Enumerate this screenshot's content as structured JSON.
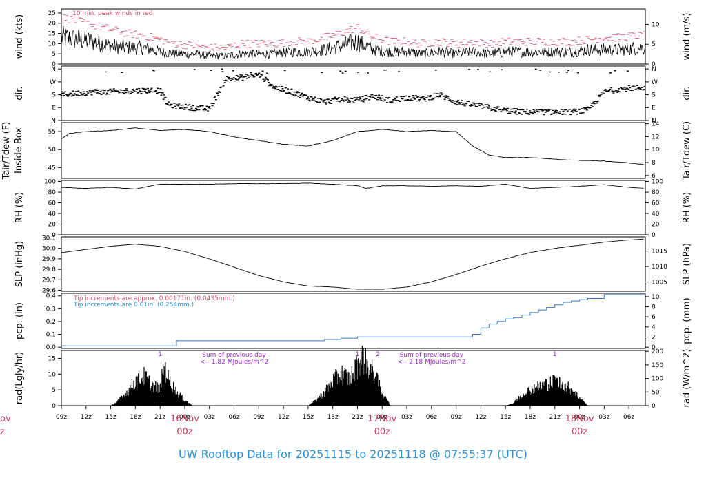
{
  "chart_data": {
    "type": "line",
    "title": "UW Rooftop Data for 20251115  to  20251118 @ 07:55:37  (UTC)",
    "hours_total": 71,
    "x_ticks": [
      {
        "h": 0,
        "label": "09z"
      },
      {
        "h": 3,
        "label": "12z"
      },
      {
        "h": 6,
        "label": "15z"
      },
      {
        "h": 9,
        "label": "18z"
      },
      {
        "h": 12,
        "label": "21z"
      },
      {
        "h": 15,
        "label": "00z"
      },
      {
        "h": 18,
        "label": "03z"
      },
      {
        "h": 21,
        "label": "06z"
      },
      {
        "h": 24,
        "label": "09z"
      },
      {
        "h": 27,
        "label": "12z"
      },
      {
        "h": 30,
        "label": "15z"
      },
      {
        "h": 33,
        "label": "18z"
      },
      {
        "h": 36,
        "label": "21z"
      },
      {
        "h": 39,
        "label": "00z"
      },
      {
        "h": 42,
        "label": "03z"
      },
      {
        "h": 45,
        "label": "06z"
      },
      {
        "h": 48,
        "label": "09z"
      },
      {
        "h": 51,
        "label": "12z"
      },
      {
        "h": 54,
        "label": "15z"
      },
      {
        "h": 57,
        "label": "18z"
      },
      {
        "h": 60,
        "label": "21z"
      },
      {
        "h": 63,
        "label": "00z"
      },
      {
        "h": 66,
        "label": "03z"
      },
      {
        "h": 69,
        "label": "06z"
      }
    ],
    "day_markers": [
      {
        "h": 15,
        "day": "16Nov",
        "time": "00z"
      },
      {
        "h": 39,
        "day": "17Nov",
        "time": "00z"
      },
      {
        "h": 63,
        "day": "18Nov",
        "time": "00z"
      }
    ],
    "edge_day_fragment": {
      "day": "ov",
      "time": "z"
    },
    "panels": [
      {
        "id": "wind",
        "ylabel_left": [
          "wind (kts)"
        ],
        "ylabel_right": "wind (m/s)",
        "yticks_left": [
          "0",
          "5",
          "10",
          "15",
          "20",
          "25"
        ],
        "yticks_left_values": [
          0,
          5,
          10,
          15,
          20,
          25
        ],
        "ylim_left": [
          0,
          27
        ],
        "yticks_right": [
          "0",
          "5",
          "10"
        ],
        "yticks_right_values": [
          0,
          5,
          10
        ],
        "ylim_right": [
          0,
          13.9
        ],
        "note": "10 min. peak winds in red",
        "series": [
          {
            "name": "wind",
            "h": [
              0,
              2,
              4,
              6,
              8,
              10,
              12,
              14,
              16,
              18,
              20,
              22,
              24,
              26,
              28,
              30,
              32,
              34,
              36,
              38,
              40,
              42,
              44,
              46,
              48,
              50,
              52,
              54,
              56,
              58,
              60,
              62,
              64,
              66,
              68,
              70,
              71
            ],
            "values": [
              13,
              12,
              11,
              9,
              8,
              8,
              6,
              5,
              5,
              4,
              4,
              5,
              5,
              5,
              6,
              6,
              7,
              9,
              11,
              7,
              6,
              6,
              5,
              6,
              5,
              6,
              5,
              6,
              6,
              6,
              6,
              6,
              7,
              7,
              7,
              8,
              8
            ]
          },
          {
            "name": "peak",
            "h": [
              0,
              2,
              4,
              6,
              8,
              10,
              12,
              14,
              16,
              18,
              20,
              22,
              24,
              26,
              28,
              30,
              32,
              34,
              36,
              38,
              40,
              42,
              44,
              46,
              48,
              50,
              52,
              54,
              56,
              58,
              60,
              62,
              64,
              66,
              68,
              70,
              71
            ],
            "values": [
              23,
              21,
              19,
              17,
              15,
              14,
              12,
              10,
              9,
              8,
              8,
              10,
              10,
              10,
              11,
              11,
              13,
              15,
              18,
              13,
              11,
              11,
              10,
              11,
              10,
              11,
              10,
              11,
              11,
              11,
              11,
              11,
              12,
              13,
              13,
              14,
              14
            ]
          }
        ]
      },
      {
        "id": "dir",
        "ylabel_left": [
          "dir."
        ],
        "ylabel_right": "dir.",
        "yticks_left": [
          "N",
          "E",
          "S",
          "W",
          "N"
        ],
        "yticks_left_values": [
          0,
          90,
          180,
          270,
          360
        ],
        "ylim_left": [
          0,
          380
        ],
        "yticks_right": [
          "N",
          "E",
          "S",
          "W",
          "N"
        ],
        "yticks_right_values": [
          0,
          90,
          180,
          270,
          360
        ],
        "ylim_right": [
          0,
          380
        ],
        "series": [
          {
            "name": "direction",
            "h": [
              0,
              2,
              4,
              6,
              8,
              10,
              12,
              13,
              14,
              16,
              18,
              20,
              22,
              24,
              26,
              28,
              30,
              32,
              34,
              36,
              38,
              40,
              42,
              44,
              46,
              48,
              50,
              52,
              54,
              56,
              58,
              60,
              62,
              64,
              66,
              68,
              70,
              71
            ],
            "values": [
              180,
              190,
              200,
              200,
              205,
              210,
              210,
              110,
              100,
              90,
              80,
              290,
              300,
              320,
              230,
              200,
              160,
              130,
              150,
              140,
              170,
              140,
              160,
              150,
              180,
              130,
              110,
              90,
              70,
              60,
              60,
              60,
              60,
              70,
              200,
              220,
              230,
              230
            ]
          }
        ]
      },
      {
        "id": "temp",
        "ylabel_left": [
          "Tair/Tdew (F)",
          "Inside Box"
        ],
        "ylabel_right": "Tair/Tdew (C)",
        "yticks_left": [
          "45",
          "50",
          "55"
        ],
        "yticks_left_values": [
          45,
          50,
          55
        ],
        "ylim_left": [
          42,
          57.5
        ],
        "yticks_right": [
          "6",
          "8",
          "10",
          "12",
          "14"
        ],
        "yticks_right_values": [
          6,
          8,
          10,
          12,
          14
        ],
        "ylim_right": [
          5.56,
          14.17
        ],
        "series": [
          {
            "name": "temp",
            "h": [
              0,
              1,
              3,
              6,
              9,
              12,
              15,
              18,
              21,
              24,
              27,
              30,
              33,
              36,
              39,
              42,
              45,
              48,
              50,
              52,
              54,
              57,
              60,
              63,
              66,
              69,
              71
            ],
            "values": [
              53,
              54.5,
              55,
              55.3,
              56,
              55.3,
              55.6,
              55,
              53.5,
              52.5,
              51.5,
              51,
              52.5,
              55,
              55.6,
              55,
              55.3,
              55,
              51,
              48.5,
              47.8,
              47.8,
              47.3,
              47,
              46.8,
              46.3,
              45.8
            ]
          }
        ]
      },
      {
        "id": "rh",
        "ylabel_left": [
          "RH (%)"
        ],
        "ylabel_right": "RH (%)",
        "yticks_left": [
          "0",
          "20",
          "40",
          "60",
          "80",
          "100"
        ],
        "yticks_left_values": [
          0,
          20,
          40,
          60,
          80,
          100
        ],
        "ylim_left": [
          0,
          102
        ],
        "yticks_right": [
          "0",
          "20",
          "40",
          "60",
          "80",
          "100"
        ],
        "yticks_right_values": [
          0,
          20,
          40,
          60,
          80,
          100
        ],
        "ylim_right": [
          0,
          102
        ],
        "series": [
          {
            "name": "rh",
            "h": [
              0,
              3,
              6,
              9,
              12,
              15,
              18,
              21,
              24,
              27,
              30,
              33,
              36,
              37,
              39,
              42,
              45,
              48,
              51,
              54,
              57,
              60,
              63,
              66,
              69,
              71
            ],
            "values": [
              89,
              87,
              89,
              86,
              95,
              95,
              95,
              96,
              96,
              96,
              97,
              95,
              92,
              87,
              92,
              92,
              91,
              92,
              91,
              95,
              87,
              89,
              91,
              94,
              89,
              87
            ]
          }
        ]
      },
      {
        "id": "slp",
        "ylabel_left": [
          "SLP (inHg)"
        ],
        "ylabel_right": "SLP (hPa)",
        "yticks_left": [
          "29.6",
          "29.7",
          "29.8",
          "29.9",
          "30.0",
          "30.1"
        ],
        "yticks_left_values": [
          29.6,
          29.7,
          29.8,
          29.9,
          30.0,
          30.1
        ],
        "ylim_left": [
          29.59,
          30.11
        ],
        "yticks_right": [
          "1005",
          "1010",
          "1015"
        ],
        "yticks_right_values": [
          1005,
          1010,
          1015
        ],
        "ylim_right": [
          1002.0,
          1019.6
        ],
        "series": [
          {
            "name": "slp",
            "h": [
              0,
              3,
              6,
              9,
              12,
              15,
              18,
              21,
              24,
              27,
              30,
              33,
              36,
              39,
              42,
              45,
              48,
              51,
              54,
              57,
              60,
              63,
              66,
              69,
              71
            ],
            "values": [
              29.96,
              29.99,
              30.02,
              30.04,
              30.02,
              29.97,
              29.9,
              29.82,
              29.74,
              29.68,
              29.64,
              29.63,
              29.61,
              29.61,
              29.63,
              29.68,
              29.75,
              29.83,
              29.9,
              29.96,
              30.0,
              30.03,
              30.06,
              30.08,
              30.09
            ]
          }
        ]
      },
      {
        "id": "pcp",
        "ylabel_left": [
          "pcp. (in)"
        ],
        "ylabel_right": "pcp. (mm)",
        "yticks_left": [
          "0.0",
          "0.1",
          "0.2",
          "0.3",
          "0.4"
        ],
        "yticks_left_values": [
          0,
          0.1,
          0.2,
          0.3,
          0.4
        ],
        "ylim_left": [
          -0.01,
          0.42
        ],
        "yticks_right": [
          "0",
          "2",
          "4",
          "6",
          "8",
          "10"
        ],
        "yticks_right_values": [
          0,
          2,
          4,
          6,
          8,
          10
        ],
        "ylim_right": [
          -0.254,
          10.67
        ],
        "notes": [
          {
            "text": "Tip increments are approx. 0.00171in. (0.0435mm.)",
            "color": "#d4506e"
          },
          {
            "text": "Tip increments are 0.01in. (0.254mm.)",
            "color": "#2a8fd0"
          }
        ],
        "series": [
          {
            "name": "pcp",
            "h": [
              0,
              12,
              14,
              16,
              32,
              34,
              36,
              50,
              51,
              52,
              53,
              54,
              55,
              56,
              57,
              58,
              59,
              60,
              61,
              62,
              63,
              64,
              66,
              71
            ],
            "values": [
              0.01,
              0.01,
              0.05,
              0.05,
              0.06,
              0.07,
              0.08,
              0.1,
              0.15,
              0.18,
              0.2,
              0.22,
              0.23,
              0.25,
              0.27,
              0.29,
              0.31,
              0.33,
              0.35,
              0.36,
              0.37,
              0.38,
              0.41,
              0.41
            ]
          }
        ]
      },
      {
        "id": "rad",
        "ylabel_left": [
          "rad(Lgly/hr)"
        ],
        "ylabel_right": "rad (W/m^2)",
        "yticks_left": [
          "0",
          "5",
          "10",
          "15"
        ],
        "yticks_left_values": [
          0,
          5,
          10,
          15
        ],
        "ylim_left": [
          0,
          17.5
        ],
        "yticks_right": [
          "0",
          "50",
          "100",
          "150",
          "200"
        ],
        "yticks_right_values": [
          0,
          50,
          100,
          150,
          200
        ],
        "ylim_right": [
          0,
          203
        ],
        "day_sums": [
          {
            "h": 21,
            "line1": "Sum of previous day",
            "line2": "<-- 1.82 MJoules/m^2"
          },
          {
            "h": 45,
            "line1": "Sum of previous day",
            "line2": "<-- 2.18 MJoules/m^2"
          }
        ],
        "markers": [
          {
            "h": 12,
            "text": "1"
          },
          {
            "h": 36,
            "text": "1"
          },
          {
            "h": 38.5,
            "text": "2"
          },
          {
            "h": 60,
            "text": "1"
          }
        ],
        "series": [
          {
            "name": "rad",
            "h": [
              6,
              7,
              8,
              9,
              10,
              11,
              12,
              12.5,
              13,
              14,
              15,
              16,
              30,
              31,
              32,
              33,
              34,
              35,
              36,
              36.5,
              37,
              38,
              39,
              40,
              54,
              55,
              56,
              57,
              58,
              59,
              60,
              61,
              62,
              63,
              64
            ],
            "values": [
              0,
              2,
              5,
              9,
              11,
              8,
              6,
              15,
              10,
              5,
              2,
              0,
              0,
              2,
              5,
              9,
              12,
              10,
              15,
              18,
              16,
              12,
              5,
              0,
              0,
              1,
              4,
              6,
              7,
              8,
              9,
              8,
              6,
              3,
              0
            ]
          }
        ]
      }
    ]
  }
}
